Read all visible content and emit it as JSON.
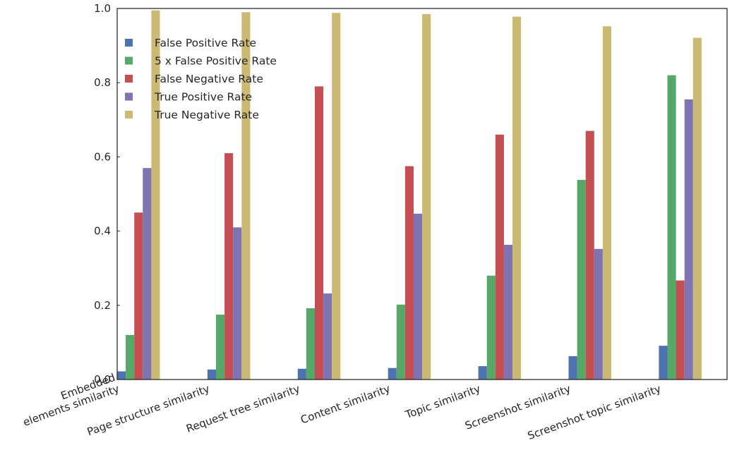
{
  "chart_data": {
    "type": "bar",
    "title": "",
    "xlabel": "",
    "ylabel": "",
    "ylim": [
      0.0,
      1.0
    ],
    "yticks": [
      "0.0",
      "0.2",
      "0.4",
      "0.6",
      "0.8",
      "1.0"
    ],
    "grid": false,
    "legend_position": "top-left",
    "categories": [
      [
        "Embedded",
        "elements similarity"
      ],
      [
        "Page structure similarity"
      ],
      [
        "Request tree similarity"
      ],
      [
        "Content similarity"
      ],
      [
        "Topic similarity"
      ],
      [
        "Screenshot similarity"
      ],
      [
        "Screenshot topic similarity"
      ]
    ],
    "series": [
      {
        "name": "False Positive Rate",
        "color": "#4c72b0",
        "values": [
          0.022,
          0.027,
          0.029,
          0.031,
          0.036,
          0.063,
          0.091
        ]
      },
      {
        "name": "5 x False Positive Rate",
        "color": "#55a868",
        "values": [
          0.12,
          0.175,
          0.192,
          0.202,
          0.28,
          0.538,
          0.82
        ]
      },
      {
        "name": "False Negative Rate",
        "color": "#c44e52",
        "values": [
          0.45,
          0.61,
          0.79,
          0.575,
          0.66,
          0.67,
          0.267
        ]
      },
      {
        "name": "True Positive Rate",
        "color": "#8172b2",
        "values": [
          0.57,
          0.41,
          0.232,
          0.447,
          0.363,
          0.352,
          0.755
        ]
      },
      {
        "name": "True Negative Rate",
        "color": "#ccb974",
        "values": [
          0.995,
          0.99,
          0.988,
          0.985,
          0.978,
          0.952,
          0.921
        ]
      }
    ]
  }
}
